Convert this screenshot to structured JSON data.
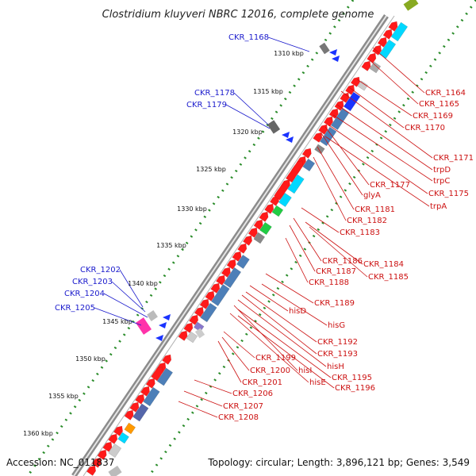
{
  "title": "Clostridium kluyveri NBRC 12016, complete genome",
  "footer": {
    "accession": "Accession: NC_011837",
    "topology": "Topology: circular; Length: 3,896,121 bp; Genes: 3,549"
  },
  "kbp_ticks": [
    "1310 kbp",
    "1315 kbp",
    "1320 kbp",
    "1325 kbp",
    "1330 kbp",
    "1335 kbp",
    "1340 kbp",
    "1345 kbp",
    "1350 kbp",
    "1355 kbp",
    "1360 kbp"
  ],
  "labels_blue": [
    "CKR_1168",
    "CKR_1178",
    "CKR_1179",
    "CKR_1202",
    "CKR_1203",
    "CKR_1204",
    "CKR_1205"
  ],
  "labels_red": [
    "CKR_1164",
    "CKR_1165",
    "CKR_1169",
    "CKR_1170",
    "CKR_1171",
    "trpD",
    "trpC",
    "CKR_1177",
    "CKR_1175",
    "glyA",
    "trpA",
    "CKR_1181",
    "CKR_1182",
    "CKR_1183",
    "CKR_1186",
    "CKR_1184",
    "CKR_1187",
    "CKR_1185",
    "CKR_1188",
    "CKR_1189",
    "hisD",
    "hisG",
    "CKR_1192",
    "CKR_1193",
    "CKR_1199",
    "hisH",
    "CKR_1200",
    "hisI",
    "CKR_1195",
    "CKR_1201",
    "hisE",
    "CKR_1196",
    "CKR_1206",
    "CKR_1207",
    "CKR_1208"
  ],
  "colors": {
    "label_blue": "#1a1acc",
    "label_red": "#cc1111",
    "backbone": "#8c8c8c",
    "gene_red": "#ff1a1a",
    "gene_blue": "#1a33ff",
    "steel": "#4d7fb8",
    "cyan": "#00d8ff",
    "green": "#22cc44",
    "dots": "#2a8c2a"
  }
}
